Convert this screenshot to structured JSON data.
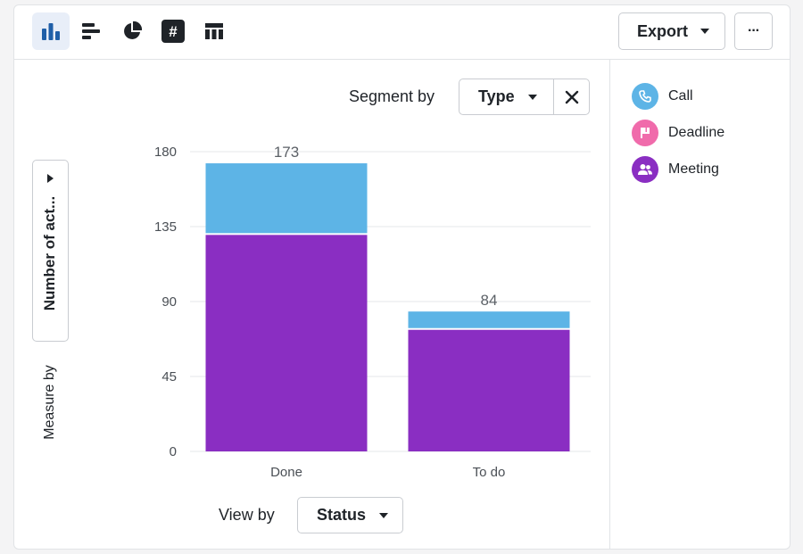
{
  "toolbar": {
    "tools": [
      {
        "name": "bar-chart-icon",
        "active": true
      },
      {
        "name": "horizontal-bar-icon",
        "active": false
      },
      {
        "name": "pie-chart-icon",
        "active": false
      },
      {
        "name": "number-icon",
        "active": false
      },
      {
        "name": "table-icon",
        "active": false
      }
    ],
    "export_label": "Export",
    "more_label": "···"
  },
  "segment": {
    "label": "Segment by",
    "value": "Type"
  },
  "view": {
    "label": "View by",
    "value": "Status"
  },
  "measure": {
    "label": "Measure by",
    "value": "Number of act..."
  },
  "legend": [
    {
      "label": "Call",
      "color": "#5db4e6",
      "icon": "phone-icon"
    },
    {
      "label": "Deadline",
      "color": "#f06bab",
      "icon": "flag-icon"
    },
    {
      "label": "Meeting",
      "color": "#8a2ec2",
      "icon": "people-icon"
    }
  ],
  "chart_data": {
    "type": "bar",
    "stacked": true,
    "categories": [
      "Done",
      "To do"
    ],
    "series": [
      {
        "name": "Meeting",
        "color": "#8a2ec2",
        "values": [
          130,
          73
        ]
      },
      {
        "name": "Call",
        "color": "#5db4e6",
        "values": [
          43,
          11
        ]
      }
    ],
    "totals": [
      173,
      84
    ],
    "yticks": [
      0,
      45,
      90,
      135,
      180
    ],
    "ylim": [
      0,
      180
    ],
    "grid": true
  }
}
